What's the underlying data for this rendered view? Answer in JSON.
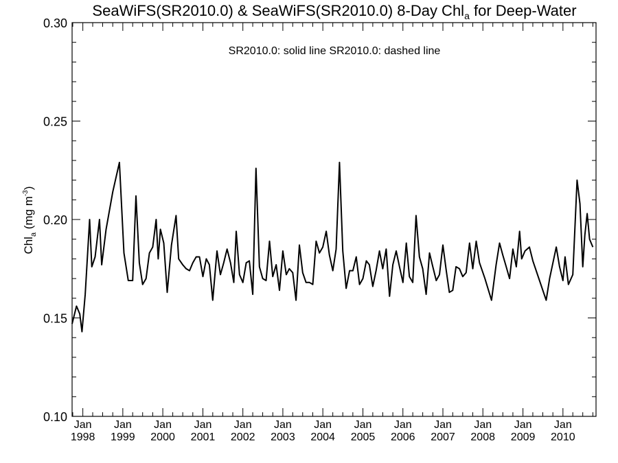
{
  "chart_data": {
    "type": "line",
    "title": {
      "prefix": "SeaWiFS(SR2010.0) & SeaWiFS(SR2010.0) 8-Day Chl",
      "sub": "a",
      "suffix": " for Deep-Water"
    },
    "ylabel": {
      "main": "Chl",
      "sub": "a",
      "unit": " (mg m",
      "sup": "-3",
      "close": ")"
    },
    "legend": {
      "text": "SR2010.0: solid line   SR2010.0: dashed line",
      "placement": "top-center"
    },
    "ylim": [
      0.1,
      0.3
    ],
    "yticks": [
      {
        "value": 0.1,
        "label": "0.10"
      },
      {
        "value": 0.15,
        "label": "0.15"
      },
      {
        "value": 0.2,
        "label": "0.20"
      },
      {
        "value": 0.25,
        "label": "0.25"
      },
      {
        "value": 0.3,
        "label": "0.30"
      }
    ],
    "xlim": [
      "1997-09-25",
      "2010-10-30"
    ],
    "xticks": [
      {
        "date": "1998-01-01",
        "month": "Jan",
        "year": "1998"
      },
      {
        "date": "1999-01-01",
        "month": "Jan",
        "year": "1999"
      },
      {
        "date": "2000-01-01",
        "month": "Jan",
        "year": "2000"
      },
      {
        "date": "2001-01-01",
        "month": "Jan",
        "year": "2001"
      },
      {
        "date": "2002-01-01",
        "month": "Jan",
        "year": "2002"
      },
      {
        "date": "2003-01-01",
        "month": "Jan",
        "year": "2003"
      },
      {
        "date": "2004-01-01",
        "month": "Jan",
        "year": "2004"
      },
      {
        "date": "2005-01-01",
        "month": "Jan",
        "year": "2005"
      },
      {
        "date": "2006-01-01",
        "month": "Jan",
        "year": "2006"
      },
      {
        "date": "2007-01-01",
        "month": "Jan",
        "year": "2007"
      },
      {
        "date": "2008-01-01",
        "month": "Jan",
        "year": "2008"
      },
      {
        "date": "2009-01-01",
        "month": "Jan",
        "year": "2009"
      },
      {
        "date": "2010-01-01",
        "month": "Jan",
        "year": "2010"
      }
    ],
    "grid": false,
    "series": [
      {
        "style": "solid",
        "points": [
          [
            "1997-09-25",
            0.147
          ],
          [
            "1997-11-04",
            0.156
          ],
          [
            "1997-12-04",
            0.152
          ],
          [
            "1997-12-24",
            0.143
          ],
          [
            "1998-01-23",
            0.162
          ],
          [
            "1998-03-04",
            0.2
          ],
          [
            "1998-03-24",
            0.176
          ],
          [
            "1998-04-23",
            0.181
          ],
          [
            "1998-06-02",
            0.2
          ],
          [
            "1998-06-22",
            0.177
          ],
          [
            "1998-08-01",
            0.195
          ],
          [
            "1998-10-01",
            0.214
          ],
          [
            "1998-12-01",
            0.229
          ],
          [
            "1999-01-11",
            0.183
          ],
          [
            "1999-02-20",
            0.169
          ],
          [
            "1999-04-01",
            0.169
          ],
          [
            "1999-05-01",
            0.212
          ],
          [
            "1999-06-01",
            0.178
          ],
          [
            "1999-07-01",
            0.167
          ],
          [
            "1999-08-01",
            0.17
          ],
          [
            "1999-09-01",
            0.183
          ],
          [
            "1999-10-01",
            0.186
          ],
          [
            "1999-11-01",
            0.2
          ],
          [
            "1999-11-20",
            0.18
          ],
          [
            "1999-12-10",
            0.195
          ],
          [
            "2000-01-10",
            0.188
          ],
          [
            "2000-02-10",
            0.163
          ],
          [
            "2000-03-20",
            0.187
          ],
          [
            "2000-05-01",
            0.202
          ],
          [
            "2000-05-25",
            0.18
          ],
          [
            "2000-07-01",
            0.177
          ],
          [
            "2000-08-01",
            0.175
          ],
          [
            "2000-09-01",
            0.174
          ],
          [
            "2000-10-01",
            0.178
          ],
          [
            "2000-11-01",
            0.181
          ],
          [
            "2000-12-01",
            0.181
          ],
          [
            "2001-01-01",
            0.171
          ],
          [
            "2001-02-01",
            0.18
          ],
          [
            "2001-03-01",
            0.177
          ],
          [
            "2001-04-01",
            0.159
          ],
          [
            "2001-05-10",
            0.184
          ],
          [
            "2001-06-10",
            0.172
          ],
          [
            "2001-07-10",
            0.178
          ],
          [
            "2001-08-10",
            0.185
          ],
          [
            "2001-09-10",
            0.178
          ],
          [
            "2001-10-10",
            0.168
          ],
          [
            "2001-11-01",
            0.194
          ],
          [
            "2001-12-01",
            0.172
          ],
          [
            "2002-01-01",
            0.168
          ],
          [
            "2002-02-01",
            0.178
          ],
          [
            "2002-03-01",
            0.179
          ],
          [
            "2002-04-01",
            0.162
          ],
          [
            "2002-05-01",
            0.226
          ],
          [
            "2002-06-01",
            0.176
          ],
          [
            "2002-07-01",
            0.17
          ],
          [
            "2002-08-01",
            0.169
          ],
          [
            "2002-09-01",
            0.189
          ],
          [
            "2002-10-01",
            0.171
          ],
          [
            "2002-11-01",
            0.177
          ],
          [
            "2002-12-01",
            0.164
          ],
          [
            "2003-01-01",
            0.184
          ],
          [
            "2003-02-01",
            0.172
          ],
          [
            "2003-03-01",
            0.175
          ],
          [
            "2003-04-01",
            0.173
          ],
          [
            "2003-05-01",
            0.159
          ],
          [
            "2003-06-01",
            0.187
          ],
          [
            "2003-07-01",
            0.173
          ],
          [
            "2003-08-01",
            0.168
          ],
          [
            "2003-09-01",
            0.168
          ],
          [
            "2003-10-01",
            0.167
          ],
          [
            "2003-11-01",
            0.189
          ],
          [
            "2003-12-01",
            0.183
          ],
          [
            "2004-01-01",
            0.186
          ],
          [
            "2004-02-01",
            0.194
          ],
          [
            "2004-03-01",
            0.182
          ],
          [
            "2004-04-01",
            0.174
          ],
          [
            "2004-05-01",
            0.185
          ],
          [
            "2004-06-01",
            0.229
          ],
          [
            "2004-07-01",
            0.184
          ],
          [
            "2004-08-01",
            0.165
          ],
          [
            "2004-09-01",
            0.174
          ],
          [
            "2004-10-01",
            0.174
          ],
          [
            "2004-11-01",
            0.181
          ],
          [
            "2004-12-01",
            0.167
          ],
          [
            "2005-01-01",
            0.17
          ],
          [
            "2005-02-01",
            0.179
          ],
          [
            "2005-03-01",
            0.177
          ],
          [
            "2005-04-01",
            0.166
          ],
          [
            "2005-05-01",
            0.174
          ],
          [
            "2005-06-01",
            0.184
          ],
          [
            "2005-07-01",
            0.175
          ],
          [
            "2005-08-01",
            0.185
          ],
          [
            "2005-09-01",
            0.161
          ],
          [
            "2005-10-01",
            0.177
          ],
          [
            "2005-11-01",
            0.184
          ],
          [
            "2005-12-01",
            0.176
          ],
          [
            "2006-01-01",
            0.168
          ],
          [
            "2006-02-01",
            0.188
          ],
          [
            "2006-03-01",
            0.171
          ],
          [
            "2006-04-01",
            0.168
          ],
          [
            "2006-05-01",
            0.202
          ],
          [
            "2006-06-01",
            0.181
          ],
          [
            "2006-07-01",
            0.175
          ],
          [
            "2006-08-01",
            0.162
          ],
          [
            "2006-09-01",
            0.183
          ],
          [
            "2006-10-01",
            0.176
          ],
          [
            "2006-11-01",
            0.169
          ],
          [
            "2006-12-01",
            0.172
          ],
          [
            "2007-01-01",
            0.187
          ],
          [
            "2007-02-01",
            0.174
          ],
          [
            "2007-03-01",
            0.163
          ],
          [
            "2007-04-01",
            0.164
          ],
          [
            "2007-05-01",
            0.176
          ],
          [
            "2007-06-01",
            0.175
          ],
          [
            "2007-07-01",
            0.171
          ],
          [
            "2007-08-01",
            0.173
          ],
          [
            "2007-09-01",
            0.188
          ],
          [
            "2007-10-01",
            0.175
          ],
          [
            "2007-11-01",
            0.189
          ],
          [
            "2007-12-01",
            0.178
          ],
          [
            "2008-01-20",
            0.17
          ],
          [
            "2008-03-20",
            0.159
          ],
          [
            "2008-05-01",
            0.177
          ],
          [
            "2008-06-01",
            0.188
          ],
          [
            "2008-07-01",
            0.182
          ],
          [
            "2008-08-01",
            0.176
          ],
          [
            "2008-09-01",
            0.17
          ],
          [
            "2008-10-01",
            0.185
          ],
          [
            "2008-11-01",
            0.176
          ],
          [
            "2008-12-01",
            0.194
          ],
          [
            "2008-12-20",
            0.18
          ],
          [
            "2009-01-20",
            0.184
          ],
          [
            "2009-03-01",
            0.186
          ],
          [
            "2009-04-01",
            0.179
          ],
          [
            "2009-06-01",
            0.169
          ],
          [
            "2009-08-01",
            0.159
          ],
          [
            "2009-09-01",
            0.17
          ],
          [
            "2009-11-01",
            0.186
          ],
          [
            "2009-12-01",
            0.176
          ],
          [
            "2010-01-01",
            0.169
          ],
          [
            "2010-01-20",
            0.181
          ],
          [
            "2010-02-20",
            0.167
          ],
          [
            "2010-04-01",
            0.172
          ],
          [
            "2010-05-10",
            0.22
          ],
          [
            "2010-06-05",
            0.208
          ],
          [
            "2010-07-01",
            0.176
          ],
          [
            "2010-07-20",
            0.192
          ],
          [
            "2010-08-10",
            0.203
          ],
          [
            "2010-09-01",
            0.19
          ],
          [
            "2010-10-01",
            0.186
          ]
        ]
      }
    ]
  }
}
